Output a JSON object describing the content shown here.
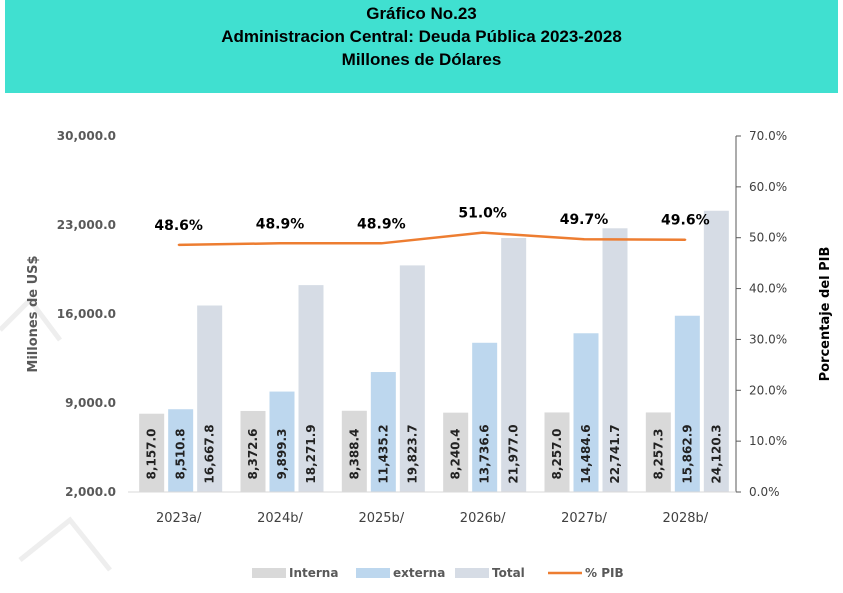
{
  "title_lines": [
    "Gráfico No.23",
    "Administracion Central: Deuda Pública  2023-2028",
    "Millones de Dólares"
  ],
  "chart_data": {
    "type": "bar",
    "categories": [
      "2023a/",
      "2024b/",
      "2025b/",
      "2026b/",
      "2027b/",
      "2028b/"
    ],
    "series": [
      {
        "name": "Interna",
        "type": "bar",
        "axis": "left",
        "color": "#d9d9d9",
        "values": [
          8157.0,
          8372.6,
          8388.4,
          8240.4,
          8257.0,
          8257.3
        ],
        "labels": [
          "8,157.0",
          "8,372.6",
          "8,388.4",
          "8,240.4",
          "8,257.0",
          "8,257.3"
        ]
      },
      {
        "name": "externa",
        "type": "bar",
        "axis": "left",
        "color": "#bdd7ee",
        "values": [
          8510.8,
          9899.3,
          11435.2,
          13736.6,
          14484.6,
          15862.9
        ],
        "labels": [
          "8,510.8",
          "9,899.3",
          "11,435.2",
          "13,736.6",
          "14,484.6",
          "15,862.9"
        ]
      },
      {
        "name": "Total",
        "type": "bar",
        "axis": "left",
        "color": "#d6dce5",
        "values": [
          16667.8,
          18271.9,
          19823.7,
          21977.0,
          22741.7,
          24120.3
        ],
        "labels": [
          "16,667.8",
          "18,271.9",
          "19,823.7",
          "21,977.0",
          "22,741.7",
          "24,120.3"
        ]
      },
      {
        "name": "% PIB",
        "type": "line",
        "axis": "right",
        "color": "#ed7d31",
        "values": [
          48.6,
          48.9,
          48.9,
          51.0,
          49.7,
          49.6
        ],
        "labels": [
          "48.6%",
          "48.9%",
          "48.9%",
          "51.0%",
          "49.7%",
          "49.6%"
        ]
      }
    ],
    "ylabel": "Millones de US$",
    "y2label": "Porcentaje del PIB",
    "ylim": [
      2000,
      30000
    ],
    "yticks": [
      2000,
      9000,
      16000,
      23000,
      30000
    ],
    "ytick_labels": [
      "2,000.0",
      "9,000.0",
      "16,000.0",
      "23,000.0",
      "30,000.0"
    ],
    "y2lim": [
      0,
      70
    ],
    "y2ticks": [
      0,
      10,
      20,
      30,
      40,
      50,
      60,
      70
    ],
    "y2tick_labels": [
      "0.0%",
      "10.0%",
      "20.0%",
      "30.0%",
      "40.0%",
      "50.0%",
      "60.0%",
      "70.0%"
    ],
    "grid": false,
    "legend_position": "bottom"
  }
}
